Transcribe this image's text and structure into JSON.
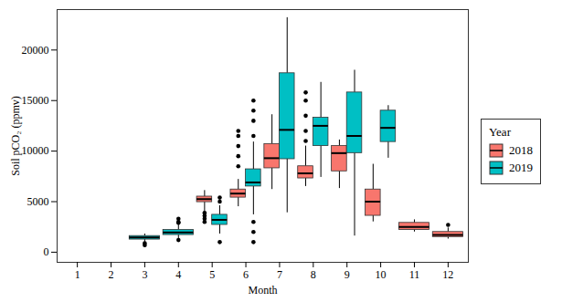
{
  "chart_data": {
    "type": "box",
    "x_label": "Month",
    "y_label": "Soil pCO₂ (ppmv)",
    "legend_title": "Year",
    "legend": "right",
    "grid": false,
    "categories": [
      1,
      2,
      3,
      4,
      5,
      6,
      7,
      8,
      9,
      10,
      11,
      12
    ],
    "xticks": [
      1,
      2,
      3,
      4,
      5,
      6,
      7,
      8,
      9,
      10,
      11,
      12
    ],
    "ylim": [
      -1000,
      24000
    ],
    "yticks": [
      0,
      5000,
      10000,
      15000,
      20000
    ],
    "series": [
      {
        "name": "2018",
        "color": "#F8766D",
        "values": [
          null,
          null,
          null,
          null,
          {
            "min": 4000,
            "q1": 4950,
            "median": 5250,
            "q3": 5500,
            "max": 6100,
            "outliers": [
              3000,
              3300,
              3600,
              3900
            ]
          },
          {
            "min": 4500,
            "q1": 5400,
            "median": 5800,
            "q3": 6200,
            "max": 7200,
            "outliers": [
              8500,
              9500,
              10500,
              11500,
              12000
            ]
          },
          {
            "min": 6200,
            "q1": 8300,
            "median": 9300,
            "q3": 10700,
            "max": 13600,
            "outliers": []
          },
          {
            "min": 6500,
            "q1": 7300,
            "median": 7800,
            "q3": 8500,
            "max": 10500,
            "outliers": [
              11000,
              12000,
              13500,
              15000,
              15800
            ]
          },
          {
            "min": 6300,
            "q1": 8000,
            "median": 9800,
            "q3": 10500,
            "max": 11100,
            "outliers": []
          },
          {
            "min": 3000,
            "q1": 3600,
            "median": 5000,
            "q3": 6200,
            "max": 8700,
            "outliers": []
          },
          {
            "min": 2000,
            "q1": 2200,
            "median": 2500,
            "q3": 2900,
            "max": 3200,
            "outliers": []
          },
          {
            "min": 1300,
            "q1": 1500,
            "median": 1700,
            "q3": 2000,
            "max": 2400,
            "outliers": [
              2700
            ]
          }
        ]
      },
      {
        "name": "2019",
        "color": "#00BFC4",
        "values": [
          null,
          null,
          {
            "min": 1000,
            "q1": 1250,
            "median": 1450,
            "q3": 1600,
            "max": 1800,
            "outliers": [
              700,
              900
            ]
          },
          {
            "min": 1300,
            "q1": 1700,
            "median": 1950,
            "q3": 2200,
            "max": 2700,
            "outliers": [
              1200,
              2900,
              3000,
              3300
            ]
          },
          {
            "min": 1800,
            "q1": 2700,
            "median": 3200,
            "q3": 3700,
            "max": 4600,
            "outliers": [
              1000,
              5000,
              5400
            ]
          },
          {
            "min": 3700,
            "q1": 6500,
            "median": 6900,
            "q3": 8200,
            "max": 10900,
            "outliers": [
              1000,
              2000,
              3000,
              11500,
              13000,
              14000,
              15000
            ]
          },
          {
            "min": 3900,
            "q1": 9200,
            "median": 12100,
            "q3": 17700,
            "max": 23200,
            "outliers": []
          },
          {
            "min": 7400,
            "q1": 10500,
            "median": 12500,
            "q3": 13300,
            "max": 16800,
            "outliers": []
          },
          {
            "min": 1600,
            "q1": 9800,
            "median": 11500,
            "q3": 15800,
            "max": 18000,
            "outliers": []
          },
          {
            "min": 9300,
            "q1": 10900,
            "median": 12300,
            "q3": 14000,
            "max": 14500,
            "outliers": []
          },
          null,
          null
        ]
      }
    ]
  }
}
